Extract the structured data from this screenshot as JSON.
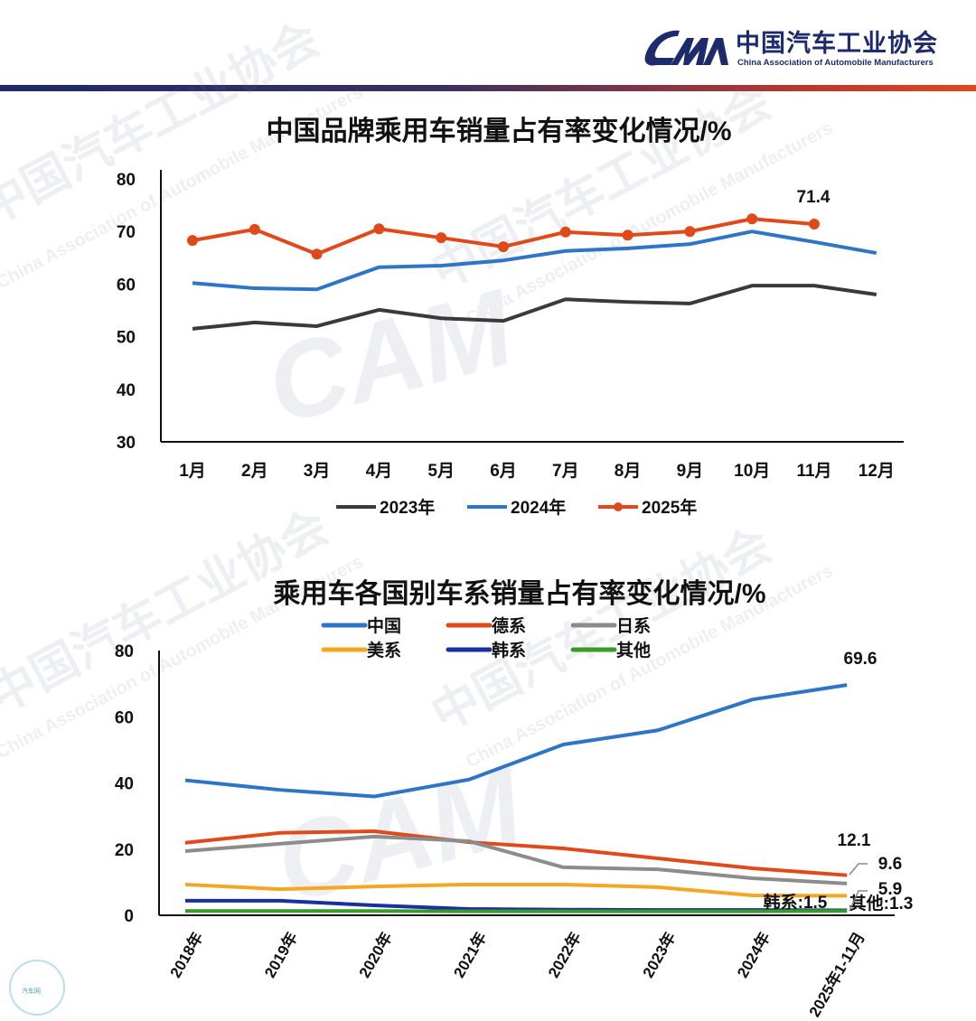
{
  "header": {
    "logo_text": "CAM",
    "org_name_cn": "中国汽车工业协会",
    "org_name_en": "China Association of Automobile Manufacturers"
  },
  "watermark": {
    "cn": "中国汽车工业协会",
    "en": "China Association of Automobile Manufacturers"
  },
  "footer_badge": "汽车网",
  "colors": {
    "c2023": "#3a3a3a",
    "c2024": "#2e75c6",
    "c2025": "#e04a1a",
    "china": "#2e75c6",
    "germany": "#e04a1a",
    "japan": "#8c8c8c",
    "usa": "#f5a623",
    "korea": "#1a2fa0",
    "other": "#3a9a2a"
  },
  "chart_data": [
    {
      "type": "line",
      "title": "中国品牌乘用车销量占有率变化情况/%",
      "xlabel": "",
      "ylabel": "",
      "ylim": [
        30,
        80
      ],
      "yticks": [
        "30",
        "40",
        "50",
        "60",
        "70",
        "80"
      ],
      "categories": [
        "1月",
        "2月",
        "3月",
        "4月",
        "5月",
        "6月",
        "7月",
        "8月",
        "9月",
        "10月",
        "11月",
        "12月"
      ],
      "legend_position": "bottom",
      "grid": false,
      "series": [
        {
          "name": "2023年",
          "color_key": "c2023",
          "markers": false,
          "values": [
            51.5,
            52.7,
            52.0,
            55.1,
            53.5,
            53.0,
            57.1,
            56.6,
            56.3,
            59.7,
            59.7,
            58.0
          ]
        },
        {
          "name": "2024年",
          "color_key": "c2024",
          "markers": false,
          "values": [
            60.2,
            59.2,
            59.0,
            63.2,
            63.5,
            64.5,
            66.3,
            66.8,
            67.6,
            70.0,
            68.0,
            65.9
          ]
        },
        {
          "name": "2025年",
          "color_key": "c2025",
          "markers": true,
          "values": [
            68.3,
            70.4,
            65.7,
            70.5,
            68.8,
            67.1,
            69.9,
            69.3,
            70.0,
            72.4,
            71.4,
            null
          ]
        }
      ],
      "annotations": [
        {
          "series": "2025年",
          "index": 10,
          "text": "71.4"
        }
      ]
    },
    {
      "type": "line",
      "title": "乘用车各国别车系销量占有率变化情况/%",
      "xlabel": "",
      "ylabel": "",
      "ylim": [
        0,
        80
      ],
      "yticks": [
        "0",
        "20",
        "40",
        "60",
        "80"
      ],
      "categories": [
        "2018年",
        "2019年",
        "2020年",
        "2021年",
        "2022年",
        "2023年",
        "2024年",
        "2025年1-11月"
      ],
      "legend_position": "top",
      "grid": false,
      "series": [
        {
          "name": "中国",
          "color_key": "china",
          "values": [
            40.8,
            37.9,
            35.9,
            41.0,
            51.6,
            55.9,
            65.2,
            69.6
          ]
        },
        {
          "name": "德系",
          "color_key": "germany",
          "values": [
            21.9,
            24.9,
            25.4,
            22.1,
            20.2,
            17.2,
            14.2,
            12.1
          ]
        },
        {
          "name": "日系",
          "color_key": "japan",
          "values": [
            19.4,
            21.6,
            23.8,
            22.4,
            14.5,
            13.9,
            11.2,
            9.6
          ]
        },
        {
          "name": "美系",
          "color_key": "usa",
          "values": [
            9.3,
            7.9,
            8.7,
            9.3,
            9.3,
            8.5,
            6.0,
            5.9
          ]
        },
        {
          "name": "韩系",
          "color_key": "korea",
          "values": [
            4.4,
            4.4,
            3.0,
            1.9,
            1.7,
            1.6,
            1.6,
            1.5
          ]
        },
        {
          "name": "其他",
          "color_key": "other",
          "values": [
            1.3,
            1.3,
            1.3,
            1.2,
            1.2,
            1.2,
            1.2,
            1.3
          ]
        }
      ],
      "annotations": [
        {
          "series": "中国",
          "text": "69.6"
        },
        {
          "series": "德系",
          "text": "12.1"
        },
        {
          "series": "日系",
          "text": "9.6"
        },
        {
          "series": "美系",
          "text": "5.9"
        },
        {
          "series": "韩系",
          "text": "韩系:1.5"
        },
        {
          "series": "其他",
          "text": "其他:1.3"
        }
      ]
    }
  ]
}
